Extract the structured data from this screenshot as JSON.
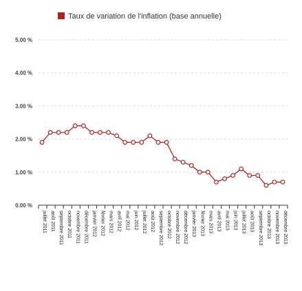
{
  "chart_data": {
    "type": "line",
    "title": "",
    "xlabel": "",
    "ylabel": "",
    "ylim": [
      0,
      5
    ],
    "grid": true,
    "legend_position": "top",
    "y_ticks": [
      "0.00 %",
      "1.00 %",
      "2.00 %",
      "3.00 %",
      "4.00 %",
      "5.00 %"
    ],
    "categories": [
      "juillet 2011",
      "août 2011",
      "septembre 2011",
      "octobre 2011",
      "novembre 2011",
      "décembre 2011",
      "janvier 2012",
      "février 2012",
      "mars 2012",
      "avril 2012",
      "mai 2012",
      "juin 2012",
      "juillet 2012",
      "août 2012",
      "septembre 2012",
      "octobre 2012",
      "novembre 2012",
      "décembre 2012",
      "janvier 2013",
      "février 2013",
      "mars 2013",
      "avril 2013",
      "mai 2013",
      "juin 2013",
      "juillet 2013",
      "août 2013",
      "septembre 2013",
      "octobre 2013",
      "novembre 2013",
      "décembre 2013"
    ],
    "series": [
      {
        "name": "Taux de variation de l'inflation (base annuelle)",
        "color": "#b22222",
        "values": [
          1.9,
          2.2,
          2.2,
          2.2,
          2.4,
          2.4,
          2.2,
          2.2,
          2.2,
          2.1,
          1.9,
          1.9,
          1.9,
          2.1,
          1.9,
          1.9,
          1.4,
          1.3,
          1.2,
          1.0,
          1.0,
          0.7,
          0.8,
          0.9,
          1.1,
          0.9,
          0.9,
          0.6,
          0.7,
          0.7
        ]
      }
    ]
  }
}
